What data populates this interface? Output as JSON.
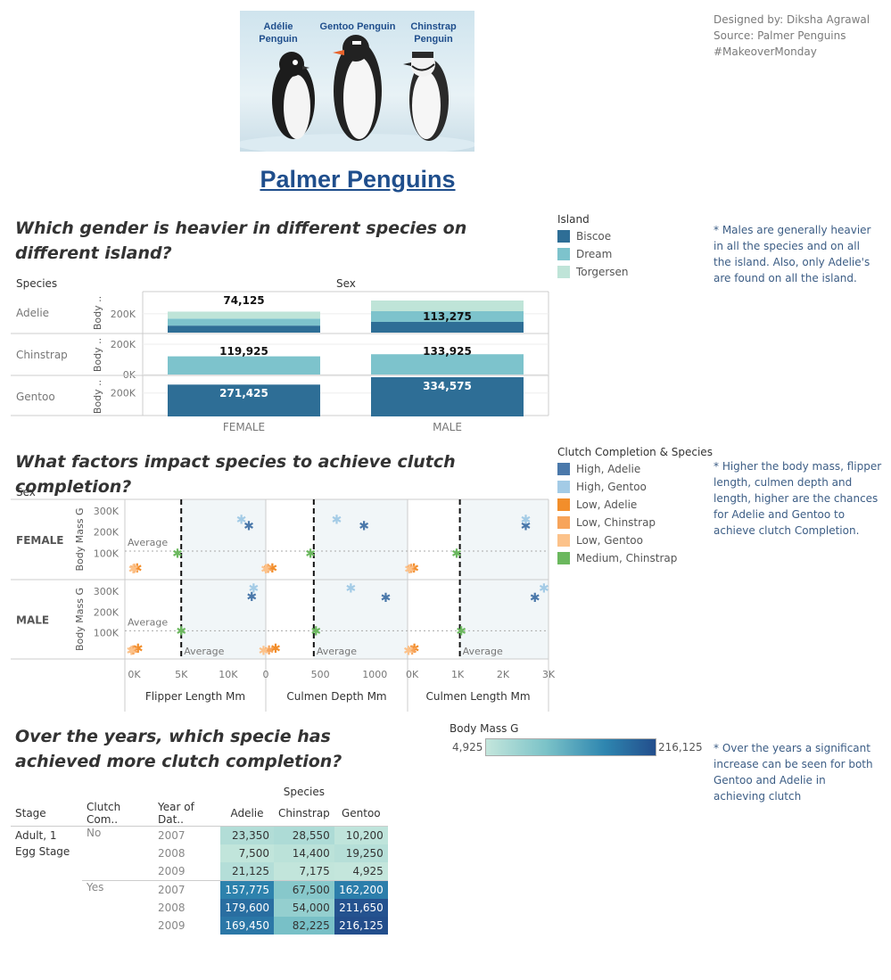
{
  "hero": {
    "labels": [
      "Adélie\nPenguin",
      "Gentoo Penguin",
      "Chinstrap\nPenguin"
    ]
  },
  "credits": [
    "Designed by: Diksha Agrawal",
    "Source: Palmer Penguins",
    "#MakeoverMonday"
  ],
  "main_title": "Palmer Penguins",
  "section1": {
    "question": "Which gender is heavier in different species on different island?",
    "note": "* Males are generally heavier in all the species and on all the island. Also, only Adelie's are found on all the island.",
    "legend_title": "Island",
    "legend": [
      {
        "label": "Biscoe",
        "color": "#2e6e96"
      },
      {
        "label": "Dream",
        "color": "#7dc3cc"
      },
      {
        "label": "Torgersen",
        "color": "#bfe4d8"
      }
    ],
    "col_header_species": "Species",
    "col_header_sex": "Sex",
    "axis_label": "Body ..",
    "species": [
      "Adelie",
      "Chinstrap",
      "Gentoo"
    ],
    "sexes": [
      "FEMALE",
      "MALE"
    ],
    "tick_labels": {
      "adelie": [
        "200K"
      ],
      "chinstrap": [
        "200K",
        "0K"
      ],
      "gentoo": [
        "200K"
      ]
    }
  },
  "chart_data": [
    {
      "type": "bar",
      "title": "Which gender is heavier in different species on different island?",
      "stacked": true,
      "rows": [
        "Adelie",
        "Chinstrap",
        "Gentoo"
      ],
      "categories": [
        "FEMALE",
        "MALE"
      ],
      "series": [
        {
          "name": "Biscoe",
          "values": {
            "Adelie": [
              74125,
              113275
            ],
            "Chinstrap": [
              0,
              0
            ],
            "Gentoo": [
              271425,
              334575
            ]
          }
        },
        {
          "name": "Dream",
          "values": {
            "Adelie": [
              74125,
              113275
            ],
            "Chinstrap": [
              119925,
              133925
            ],
            "Gentoo": [
              0,
              0
            ]
          }
        },
        {
          "name": "Torgersen",
          "values": {
            "Adelie": [
              74125,
              113275
            ],
            "Chinstrap": [
              0,
              0
            ],
            "Gentoo": [
              0,
              0
            ]
          }
        }
      ],
      "data_labels": {
        "Adelie": [
          "74,125",
          "113,275"
        ],
        "Chinstrap": [
          "119,925",
          "133,925"
        ],
        "Gentoo": [
          "271,425",
          "334,575"
        ]
      }
    },
    {
      "type": "scatter",
      "title": "What factors impact species to achieve clutch completion?",
      "row_header": "Sex",
      "rows": [
        "FEMALE",
        "MALE"
      ],
      "row_axis_label": "Body Mass G",
      "y_ticks": [
        "300K",
        "200K",
        "100K"
      ],
      "ylim": [
        0,
        330000
      ],
      "reference_lines": {
        "body_mass_average_label": "Average",
        "x_average_label": "Average"
      },
      "panels": [
        {
          "xlabel": "Flipper Length Mm",
          "x_ticks": [
            "0K",
            "5K",
            "10K"
          ],
          "xlim": [
            -1000,
            14000
          ],
          "x_average": 5000
        },
        {
          "xlabel": "Culmen Depth Mm",
          "x_ticks": [
            "0",
            "500",
            "1000"
          ],
          "xlim": [
            0,
            1300
          ],
          "x_average": 440
        },
        {
          "xlabel": "Culmen Length Mm",
          "x_ticks": [
            "0K",
            "1K",
            "2K",
            "3K"
          ],
          "xlim": [
            -100,
            3000
          ],
          "x_average": 1050
        }
      ],
      "series": [
        {
          "name": "High, Adelie",
          "color": "#4a78aa",
          "points": {
            "FEMALE": [
              [
                12200,
                230000
              ],
              [
                900,
                230000
              ],
              [
                2500,
                230000
              ]
            ],
            "MALE": [
              [
                12500,
                275000
              ],
              [
                1100,
                270000
              ],
              [
                2700,
                270000
              ]
            ]
          }
        },
        {
          "name": "High, Gentoo",
          "color": "#a3cbe6",
          "points": {
            "FEMALE": [
              [
                11400,
                260000
              ],
              [
                650,
                260000
              ],
              [
                2500,
                260000
              ]
            ],
            "MALE": [
              [
                12700,
                315000
              ],
              [
                780,
                315000
              ],
              [
                2900,
                315000
              ]
            ]
          }
        },
        {
          "name": "Low, Adelie",
          "color": "#f28e2b",
          "points": {
            "FEMALE": [
              [
                300,
                30000
              ],
              [
                60,
                30000
              ],
              [
                40,
                30000
              ]
            ],
            "MALE": [
              [
                400,
                25000
              ],
              [
                90,
                25000
              ],
              [
                50,
                25000
              ]
            ]
          }
        },
        {
          "name": "Low, Chinstrap",
          "color": "#f7a45b",
          "points": {
            "FEMALE": [
              [
                0,
                28000
              ],
              [
                20,
                28000
              ],
              [
                -20,
                28000
              ]
            ],
            "MALE": [
              [
                -100,
                18000
              ],
              [
                30,
                18000
              ],
              [
                0,
                18000
              ]
            ]
          }
        },
        {
          "name": "Low, Gentoo",
          "color": "#fcc28a",
          "points": {
            "FEMALE": [
              [
                -100,
                25000
              ],
              [
                0,
                25000
              ],
              [
                -60,
                25000
              ]
            ],
            "MALE": [
              [
                -300,
                15000
              ],
              [
                -20,
                15000
              ],
              [
                -80,
                15000
              ]
            ]
          }
        },
        {
          "name": "Medium, Chinstrap",
          "color": "#6bb85e",
          "points": {
            "FEMALE": [
              [
                4600,
                100000
              ],
              [
                410,
                100000
              ],
              [
                980,
                100000
              ]
            ],
            "MALE": [
              [
                5000,
                110000
              ],
              [
                460,
                110000
              ],
              [
                1080,
                110000
              ]
            ]
          }
        }
      ]
    },
    {
      "type": "heatmap",
      "title": "Over the years, which specie has achieved more clutch completion?",
      "measure": "Body Mass G",
      "color_range": {
        "min": 4925,
        "max": 216125,
        "min_label": "4,925",
        "max_label": "216,125",
        "min_color": "#c4e6dc",
        "max_color": "#234e8c"
      },
      "row_headers": [
        "Stage",
        "Clutch Com..",
        "Year of Dat.."
      ],
      "column_group": "Species",
      "columns": [
        "Adelie",
        "Chinstrap",
        "Gentoo"
      ],
      "stage": "Adult, 1 Egg Stage",
      "groups": [
        {
          "clutch": "No",
          "rows": [
            {
              "year": "2007",
              "values": [
                23350,
                28550,
                10200
              ],
              "labels": [
                "23,350",
                "28,550",
                "10,200"
              ]
            },
            {
              "year": "2008",
              "values": [
                7500,
                14400,
                19250
              ],
              "labels": [
                "7,500",
                "14,400",
                "19,250"
              ]
            },
            {
              "year": "2009",
              "values": [
                21125,
                7175,
                4925
              ],
              "labels": [
                "21,125",
                "7,175",
                "4,925"
              ]
            }
          ]
        },
        {
          "clutch": "Yes",
          "rows": [
            {
              "year": "2007",
              "values": [
                157775,
                67500,
                162200
              ],
              "labels": [
                "157,775",
                "67,500",
                "162,200"
              ]
            },
            {
              "year": "2008",
              "values": [
                179600,
                54000,
                211650
              ],
              "labels": [
                "179,600",
                "54,000",
                "211,650"
              ]
            },
            {
              "year": "2009",
              "values": [
                169450,
                82225,
                216125
              ],
              "labels": [
                "169,450",
                "82,225",
                "216,125"
              ]
            }
          ]
        }
      ]
    }
  ],
  "section2": {
    "question": "What factors impact species to achieve clutch completion?",
    "note": "* Higher the body mass, flipper length, culmen depth and length, higher are the chances for Adelie and Gentoo to achieve clutch Completion.",
    "legend_title": "Clutch Completion & Species"
  },
  "section3": {
    "question": "Over the years, which specie has achieved more clutch completion?",
    "note": "* Over the years a significant increase can be seen for both Gentoo and Adelie in achieving clutch",
    "color_legend_title": "Body Mass G"
  }
}
